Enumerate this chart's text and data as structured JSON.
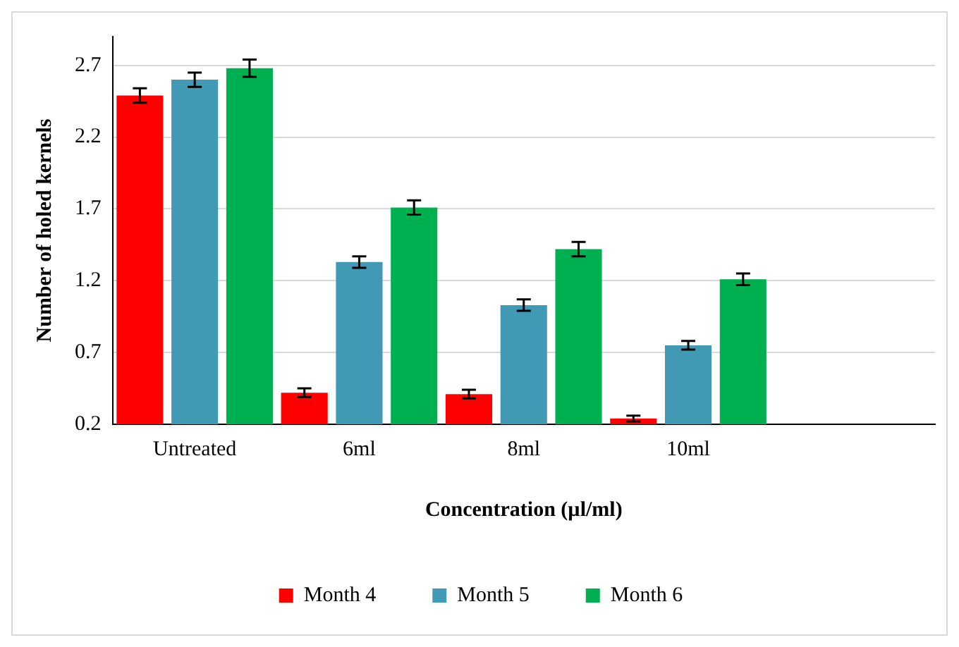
{
  "chart_data": {
    "type": "bar",
    "xlabel": "Concentration (µl/ml)",
    "ylabel": "Number of holed kernels",
    "categories": [
      "Untreated",
      "6ml",
      "8ml",
      "10ml",
      null
    ],
    "series": [
      {
        "name": "Month 4",
        "color": "#ff0000",
        "values": [
          2.49,
          0.42,
          0.41,
          0.24,
          null
        ],
        "errors": [
          0.05,
          0.03,
          0.03,
          0.02,
          null
        ]
      },
      {
        "name": "Month 5",
        "color": "#4199b4",
        "values": [
          2.6,
          1.33,
          1.03,
          0.75,
          null
        ],
        "errors": [
          0.05,
          0.04,
          0.04,
          0.03,
          null
        ]
      },
      {
        "name": "Month 6",
        "color": "#00b050",
        "values": [
          2.68,
          1.71,
          1.42,
          1.21,
          null
        ],
        "errors": [
          0.06,
          0.05,
          0.05,
          0.04,
          null
        ]
      }
    ],
    "ylim": [
      0.2,
      2.9
    ],
    "yticks": [
      0.2,
      0.7,
      1.2,
      1.7,
      2.2,
      2.7
    ],
    "grid": "y",
    "legend": "bottom"
  }
}
